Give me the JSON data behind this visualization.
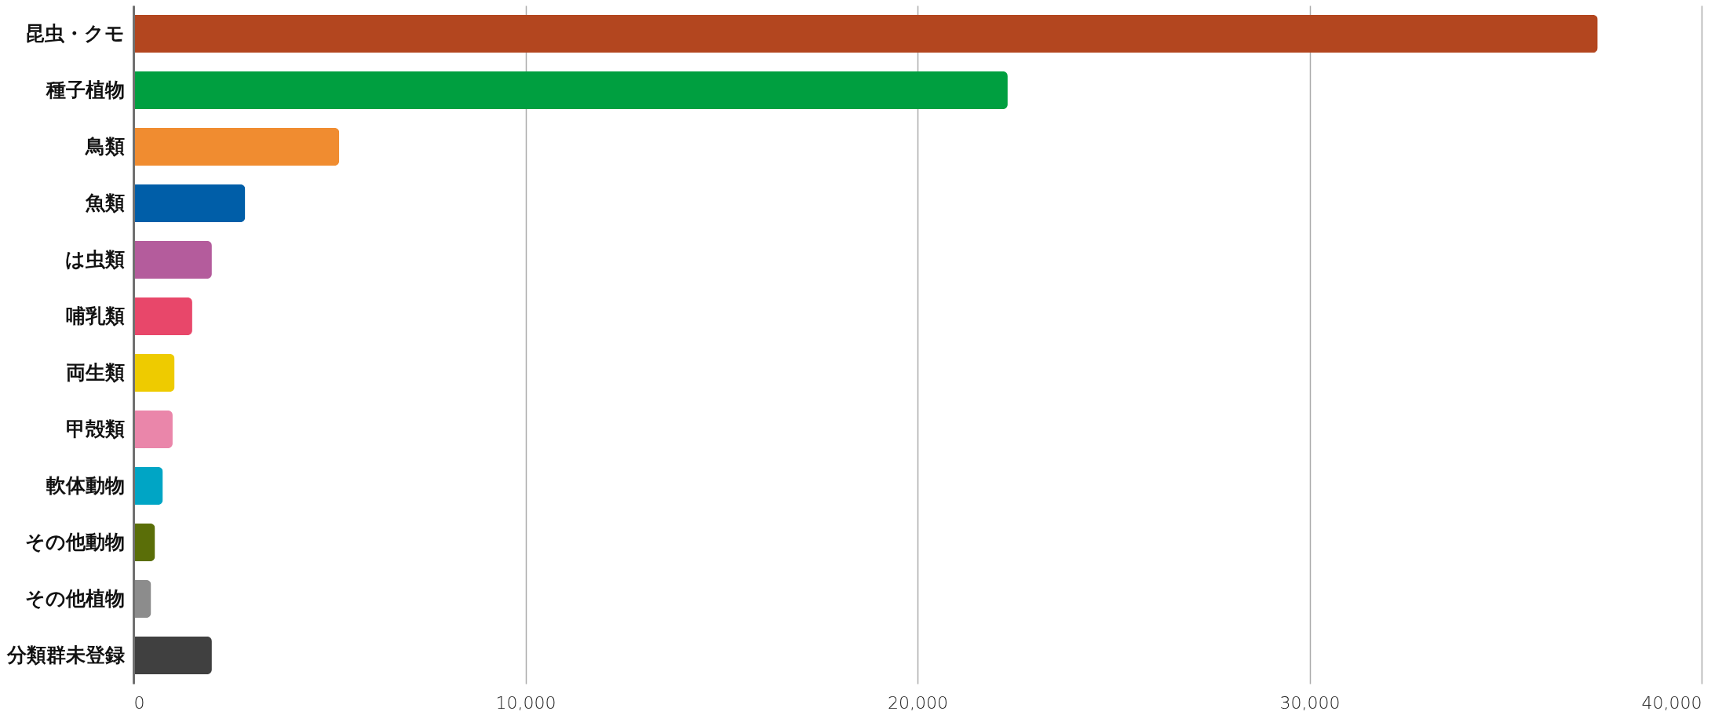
{
  "chart_data": {
    "type": "bar",
    "orientation": "horizontal",
    "categories": [
      "昆虫・クモ",
      "種子植物",
      "鳥類",
      "魚類",
      "は虫類",
      "哺乳類",
      "両生類",
      "甲殻類",
      "軟体動物",
      "その他動物",
      "その他植物",
      "分類群未登録"
    ],
    "values": [
      37350,
      22300,
      5250,
      2850,
      2000,
      1500,
      1050,
      1000,
      750,
      550,
      450,
      2000
    ],
    "colors": [
      "#b3461f",
      "#009f40",
      "#f08c30",
      "#005ea8",
      "#b45c9c",
      "#e8476a",
      "#eecb00",
      "#ea86aa",
      "#00a5c5",
      "#5a6e08",
      "#8c8c8c",
      "#404040"
    ],
    "xlim": [
      0,
      40000
    ],
    "xticks": [
      0,
      {
        "value": 10000,
        "label": "10,000"
      },
      {
        "value": 20000,
        "label": "20,000"
      },
      {
        "value": 30000,
        "label": "30,000"
      },
      {
        "value": 40000,
        "label": "40,000"
      }
    ],
    "grid": "x",
    "legend": false
  }
}
